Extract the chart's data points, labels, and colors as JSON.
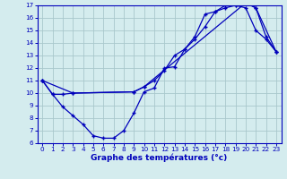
{
  "title": "Graphe des températures (°c)",
  "bg_color": "#d4ecee",
  "line_color": "#0000bb",
  "grid_color": "#a8c8cc",
  "xlim": [
    -0.5,
    23.5
  ],
  "ylim": [
    6,
    17
  ],
  "xticks": [
    0,
    1,
    2,
    3,
    4,
    5,
    6,
    7,
    8,
    9,
    10,
    11,
    12,
    13,
    14,
    15,
    16,
    17,
    18,
    19,
    20,
    21,
    22,
    23
  ],
  "yticks": [
    6,
    7,
    8,
    9,
    10,
    11,
    12,
    13,
    14,
    15,
    16,
    17
  ],
  "line1_x": [
    0,
    1,
    2,
    3,
    4,
    5,
    6,
    7,
    8,
    9,
    10,
    11,
    12,
    13,
    14,
    15,
    16,
    17,
    18,
    19,
    20,
    21,
    22,
    23
  ],
  "line1_y": [
    11.0,
    9.9,
    8.9,
    8.2,
    7.5,
    6.6,
    6.4,
    6.4,
    7.0,
    8.4,
    10.1,
    10.4,
    12.0,
    12.1,
    13.5,
    14.3,
    15.3,
    16.5,
    16.8,
    17.0,
    16.8,
    15.0,
    14.3,
    13.3
  ],
  "line2_x": [
    0,
    1,
    2,
    3,
    9,
    10,
    11,
    12,
    13,
    14,
    15,
    16,
    17,
    18,
    19,
    20,
    21,
    22,
    23
  ],
  "line2_y": [
    11.0,
    9.9,
    9.9,
    10.0,
    10.1,
    10.5,
    11.0,
    11.8,
    13.0,
    13.5,
    14.5,
    16.3,
    16.5,
    17.0,
    17.0,
    17.2,
    16.8,
    14.5,
    13.3
  ],
  "line3_x": [
    0,
    3,
    9,
    10,
    20,
    21,
    23
  ],
  "line3_y": [
    11.0,
    10.0,
    10.1,
    10.5,
    17.2,
    16.8,
    13.3
  ]
}
